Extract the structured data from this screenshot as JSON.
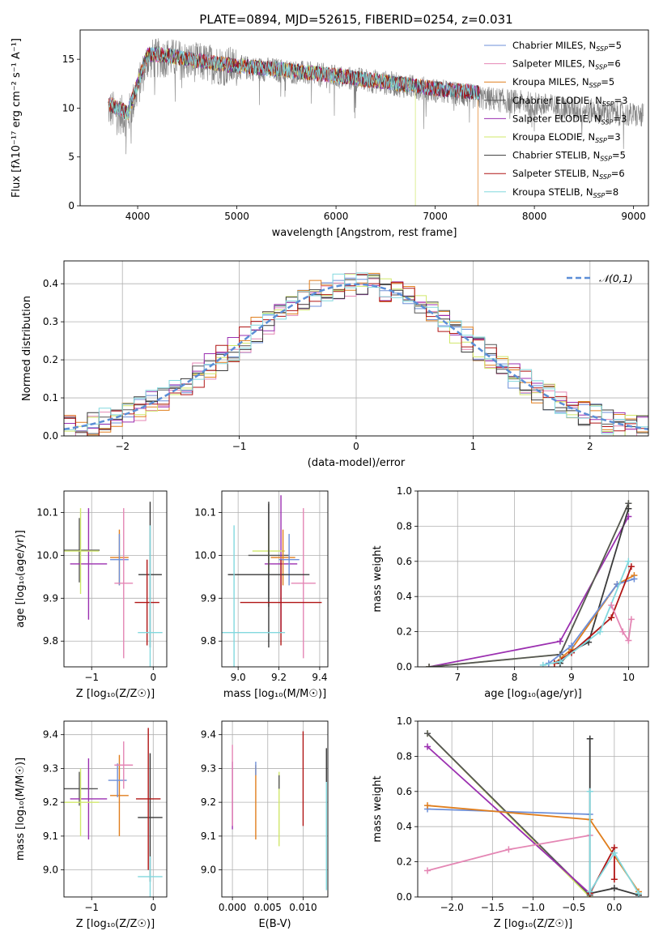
{
  "figure_title": "PLATE=0894, MJD=52615, FIBERID=0254, z=0.031",
  "series_colors": [
    "#6d8fd8",
    "#e486b4",
    "#e07e1d",
    "#555555",
    "#9b2fb0",
    "#d0e86a",
    "#3a3a3a",
    "#b01515",
    "#82d8de"
  ],
  "chart_data": [
    {
      "id": "spectrum",
      "type": "line",
      "xlabel": "wavelength [Angstrom, rest frame]",
      "ylabel": "Flux [fλ10⁻¹⁷ erg cm⁻² s⁻¹ A⁻¹]",
      "xlim": [
        3420,
        9150
      ],
      "ylim": [
        0,
        18
      ],
      "xticks": [
        4000,
        5000,
        6000,
        7000,
        8000,
        9000
      ],
      "yticks": [
        0,
        5,
        10,
        15
      ],
      "grid": false,
      "legend_position": "top-right",
      "data_range": [
        3700,
        7450
      ],
      "observed_envelope": {
        "x": [
          3700,
          3800,
          3900,
          4000,
          4100,
          4300,
          4500,
          5000,
          5500,
          6000,
          6500,
          7000,
          7500,
          8000,
          8500,
          8900,
          9100
        ],
        "y": [
          10.0,
          9.5,
          9.0,
          12.0,
          15.0,
          15.2,
          14.8,
          14.2,
          13.8,
          13.2,
          12.6,
          11.8,
          11.0,
          10.4,
          9.8,
          9.4,
          9.2
        ]
      },
      "model_envelope": {
        "x": [
          3700,
          3800,
          3900,
          4000,
          4100,
          4300,
          4500,
          5000,
          5500,
          6000,
          6500,
          7000,
          7450
        ],
        "y": [
          10.5,
          10.0,
          9.5,
          12.5,
          15.5,
          15.4,
          15.0,
          14.3,
          13.9,
          13.3,
          12.7,
          12.0,
          11.6
        ]
      },
      "series": [
        {
          "name": "Chabrier MILES, N_SSP=5"
        },
        {
          "name": "Salpeter MILES, N_SSP=6"
        },
        {
          "name": "Kroupa MILES, N_SSP=5"
        },
        {
          "name": "Chabrier ELODIE, N_SSP=3"
        },
        {
          "name": "Salpeter ELODIE, N_SSP=3"
        },
        {
          "name": "Kroupa ELODIE, N_SSP=3"
        },
        {
          "name": "Chabrier STELIB, N_SSP=5"
        },
        {
          "name": "Salpeter STELIB, N_SSP=6"
        },
        {
          "name": "Kroupa STELIB, N_SSP=8"
        }
      ]
    },
    {
      "id": "residuals",
      "type": "line",
      "xlabel": "(data-model)/error",
      "ylabel": "Normed distribution",
      "xlim": [
        -2.5,
        2.5
      ],
      "ylim": [
        0,
        0.46
      ],
      "xticks": [
        -2,
        -1,
        0,
        1,
        2
      ],
      "yticks": [
        0.0,
        0.1,
        0.2,
        0.3,
        0.4
      ],
      "grid": true,
      "legend_position": "top-right",
      "gaussian": {
        "name": "𝒩(0,1)",
        "mean": 0,
        "sigma": 1
      },
      "bin_width": 0.1
    },
    {
      "id": "age-vs-Z",
      "type": "scatter",
      "xlabel": "Z [log₁₀(Z/Z☉)]",
      "ylabel": "age  [log₁₀(age/yr)]",
      "xlim": [
        -1.45,
        0.22
      ],
      "ylim": [
        9.74,
        10.15
      ],
      "xticks": [
        -1,
        0
      ],
      "yticks": [
        9.8,
        9.9,
        10.0,
        10.1
      ],
      "grid": true,
      "points": [
        {
          "x": -1.2,
          "y": 10.012,
          "xerr": 0.33,
          "yerr": 0.075,
          "color": "#555555"
        },
        {
          "x": -1.05,
          "y": 9.98,
          "xerr": 0.3,
          "yerr": 0.13,
          "color": "#9b2fb0"
        },
        {
          "x": -1.18,
          "y": 10.01,
          "xerr": 0.3,
          "yerr": 0.1,
          "color": "#d0e86a"
        },
        {
          "x": -0.55,
          "y": 9.995,
          "xerr": 0.15,
          "yerr": 0.065,
          "color": "#e07e1d"
        },
        {
          "x": -0.55,
          "y": 9.99,
          "xerr": 0.15,
          "yerr": 0.06,
          "color": "#6d8fd8"
        },
        {
          "x": -0.48,
          "y": 9.935,
          "xerr": 0.15,
          "yerr": 0.175,
          "color": "#e486b4"
        },
        {
          "x": -0.05,
          "y": 9.955,
          "xerr": 0.19,
          "yerr": 0.17,
          "color": "#3a3a3a"
        },
        {
          "x": -0.1,
          "y": 9.89,
          "xerr": 0.2,
          "yerr": 0.1,
          "color": "#b01515"
        },
        {
          "x": -0.05,
          "y": 9.82,
          "xerr": 0.2,
          "yerr": 0.25,
          "color": "#82d8de"
        }
      ]
    },
    {
      "id": "age-vs-mass",
      "type": "scatter",
      "xlabel": "mass [log₁₀(M/M☉)]",
      "ylabel": "",
      "xlim": [
        8.92,
        9.44
      ],
      "ylim": [
        9.74,
        10.15
      ],
      "xticks": [
        9.0,
        9.2,
        9.4
      ],
      "yticks": [
        9.8,
        9.9,
        10.0,
        10.1
      ],
      "grid": true,
      "points": [
        {
          "x": 9.15,
          "y": 10.0,
          "xerr": 0.1,
          "yerr": 0.12,
          "color": "#555555"
        },
        {
          "x": 9.21,
          "y": 9.98,
          "xerr": 0.08,
          "yerr": 0.16,
          "color": "#9b2fb0"
        },
        {
          "x": 9.15,
          "y": 10.01,
          "xerr": 0.08,
          "yerr": 0.05,
          "color": "#d0e86a"
        },
        {
          "x": 9.22,
          "y": 9.995,
          "xerr": 0.06,
          "yerr": 0.065,
          "color": "#e07e1d"
        },
        {
          "x": 9.25,
          "y": 9.99,
          "xerr": 0.05,
          "yerr": 0.06,
          "color": "#6d8fd8"
        },
        {
          "x": 9.32,
          "y": 9.935,
          "xerr": 0.06,
          "yerr": 0.175,
          "color": "#e486b4"
        },
        {
          "x": 9.15,
          "y": 9.955,
          "xerr": 0.2,
          "yerr": 0.17,
          "color": "#3a3a3a"
        },
        {
          "x": 9.21,
          "y": 9.89,
          "xerr": 0.2,
          "yerr": 0.1,
          "color": "#b01515"
        },
        {
          "x": 8.98,
          "y": 9.82,
          "xerr": 0.25,
          "yerr": 0.25,
          "color": "#82d8de"
        }
      ]
    },
    {
      "id": "mass-weight-vs-age",
      "type": "line",
      "xlabel": "age  [log₁₀(age/yr)]",
      "ylabel": "mass weight",
      "xlim": [
        6.3,
        10.35
      ],
      "ylim": [
        0,
        1.0
      ],
      "xticks": [
        7,
        8,
        9,
        10
      ],
      "yticks": [
        0.0,
        0.2,
        0.4,
        0.6,
        0.8,
        1.0
      ],
      "grid": true,
      "series": [
        {
          "color": "#9b2fb0",
          "x": [
            6.5,
            8.8,
            10.0
          ],
          "y": [
            0.0,
            0.145,
            0.855
          ]
        },
        {
          "color": "#d0e86a",
          "x": [
            6.5,
            8.8,
            10.0
          ],
          "y": [
            0.0,
            0.07,
            0.93
          ]
        },
        {
          "color": "#555555",
          "x": [
            6.5,
            8.8,
            10.0
          ],
          "y": [
            0.0,
            0.07,
            0.93
          ]
        },
        {
          "color": "#3a3a3a",
          "x": [
            8.8,
            9.0,
            9.3,
            10.0
          ],
          "y": [
            0.02,
            0.09,
            0.14,
            0.9
          ]
        },
        {
          "color": "#e07e1d",
          "x": [
            8.7,
            9.0,
            9.8,
            10.1
          ],
          "y": [
            0.02,
            0.1,
            0.47,
            0.52
          ]
        },
        {
          "color": "#6d8fd8",
          "x": [
            8.6,
            9.0,
            9.8,
            10.1
          ],
          "y": [
            0.02,
            0.12,
            0.47,
            0.5
          ]
        },
        {
          "color": "#b01515",
          "x": [
            8.7,
            9.0,
            9.7,
            10.05
          ],
          "y": [
            0.02,
            0.08,
            0.28,
            0.57
          ]
        },
        {
          "color": "#82d8de",
          "x": [
            8.5,
            8.8,
            9.5,
            10.0
          ],
          "y": [
            0.01,
            0.03,
            0.2,
            0.6
          ]
        },
        {
          "color": "#e486b4",
          "x": [
            9.7,
            9.9,
            10.0,
            10.05
          ],
          "y": [
            0.35,
            0.2,
            0.15,
            0.27
          ]
        }
      ]
    },
    {
      "id": "mass-vs-Z",
      "type": "scatter",
      "xlabel": "Z [log₁₀(Z/Z☉)]",
      "ylabel": "mass [log₁₀(M/M☉)]",
      "xlim": [
        -1.45,
        0.22
      ],
      "ylim": [
        8.92,
        9.44
      ],
      "xticks": [
        -1,
        0
      ],
      "yticks": [
        9.0,
        9.1,
        9.2,
        9.3,
        9.4
      ],
      "grid": true,
      "points": [
        {
          "x": -1.2,
          "y": 9.24,
          "xerr": 0.3,
          "yerr": 0.05,
          "color": "#555555"
        },
        {
          "x": -1.05,
          "y": 9.21,
          "xerr": 0.3,
          "yerr": 0.12,
          "color": "#9b2fb0"
        },
        {
          "x": -1.18,
          "y": 9.2,
          "xerr": 0.3,
          "yerr": 0.1,
          "color": "#d0e86a"
        },
        {
          "x": -0.55,
          "y": 9.22,
          "xerr": 0.15,
          "yerr": 0.12,
          "color": "#e07e1d"
        },
        {
          "x": -0.58,
          "y": 9.265,
          "xerr": 0.15,
          "yerr": 0.05,
          "color": "#6d8fd8"
        },
        {
          "x": -0.48,
          "y": 9.31,
          "xerr": 0.15,
          "yerr": 0.07,
          "color": "#e486b4"
        },
        {
          "x": -0.05,
          "y": 9.155,
          "xerr": 0.2,
          "yerr": 0.19,
          "color": "#3a3a3a"
        },
        {
          "x": -0.08,
          "y": 9.21,
          "xerr": 0.2,
          "yerr": 0.21,
          "color": "#b01515"
        },
        {
          "x": -0.05,
          "y": 8.98,
          "xerr": 0.2,
          "yerr": 0.06,
          "color": "#82d8de"
        }
      ]
    },
    {
      "id": "mass-vs-EBV",
      "type": "scatter",
      "xlabel": "E(B-V)",
      "ylabel": "",
      "xlim": [
        -0.0015,
        0.0135
      ],
      "ylim": [
        8.92,
        9.44
      ],
      "xticks": [
        0.0,
        0.005,
        0.01
      ],
      "xtick_labels": [
        "0.000",
        "0.005",
        "0.010"
      ],
      "yticks": [
        9.0,
        9.1,
        9.2,
        9.3,
        9.4
      ],
      "grid": true,
      "points": [
        {
          "x": 0.0,
          "y": 9.22,
          "yerr": 0.1,
          "color": "#9b2fb0"
        },
        {
          "x": 0.0,
          "y": 9.25,
          "yerr": 0.12,
          "color": "#e486b4"
        },
        {
          "x": 0.0033,
          "y": 9.2,
          "yerr": 0.11,
          "color": "#e07e1d"
        },
        {
          "x": 0.0033,
          "y": 9.3,
          "yerr": 0.02,
          "color": "#6d8fd8"
        },
        {
          "x": 0.0066,
          "y": 9.18,
          "yerr": 0.11,
          "color": "#d0e86a"
        },
        {
          "x": 0.0066,
          "y": 9.26,
          "yerr": 0.02,
          "color": "#555555"
        },
        {
          "x": 0.01,
          "y": 9.27,
          "yerr": 0.14,
          "color": "#b01515"
        },
        {
          "x": 0.0133,
          "y": 9.31,
          "yerr": 0.05,
          "color": "#3a3a3a"
        },
        {
          "x": 0.0133,
          "y": 9.1,
          "yerr": 0.16,
          "color": "#82d8de"
        }
      ]
    },
    {
      "id": "mass-weight-vs-Z",
      "type": "line",
      "xlabel": "Z [log₁₀(Z/Z☉)]",
      "ylabel": "mass weight",
      "xlim": [
        -2.42,
        0.42
      ],
      "ylim": [
        0,
        1.0
      ],
      "xticks": [
        -2.0,
        -1.5,
        -1.0,
        -0.5,
        0.0
      ],
      "xtick_labels": [
        "−2.0",
        "−1.5",
        "−1.0",
        "−0.5",
        "0.0"
      ],
      "yticks": [
        0.0,
        0.2,
        0.4,
        0.6,
        0.8,
        1.0
      ],
      "grid": true,
      "series": [
        {
          "color": "#d0e86a",
          "x": [
            -2.3,
            -0.3
          ],
          "y": [
            0.93,
            0.0
          ]
        },
        {
          "color": "#555555",
          "x": [
            -2.3,
            -0.3
          ],
          "y": [
            0.93,
            0.01
          ]
        },
        {
          "color": "#9b2fb0",
          "x": [
            -2.3,
            -0.3
          ],
          "y": [
            0.855,
            0.02
          ]
        },
        {
          "color": "#6d8fd8",
          "x": [
            -2.3,
            -0.3
          ],
          "y": [
            0.5,
            0.47
          ]
        },
        {
          "color": "#e07e1d",
          "x": [
            -2.3,
            -0.3,
            0.3
          ],
          "y": [
            0.52,
            0.44,
            0.03
          ]
        },
        {
          "color": "#e486b4",
          "x": [
            -2.3,
            -1.3,
            -0.3
          ],
          "y": [
            0.15,
            0.27,
            0.35
          ]
        },
        {
          "color": "#3a3a3a",
          "x": [
            -0.3,
            -0.3,
            0.0,
            0.3
          ],
          "y": [
            0.9,
            0.02,
            0.05,
            0.01
          ]
        },
        {
          "color": "#b01515",
          "x": [
            -0.3,
            0.0,
            0.0
          ],
          "y": [
            0.02,
            0.28,
            0.1
          ]
        },
        {
          "color": "#82d8de",
          "x": [
            -0.3,
            -0.3,
            0.0,
            0.3
          ],
          "y": [
            0.6,
            0.03,
            0.25,
            0.02
          ]
        }
      ]
    }
  ]
}
